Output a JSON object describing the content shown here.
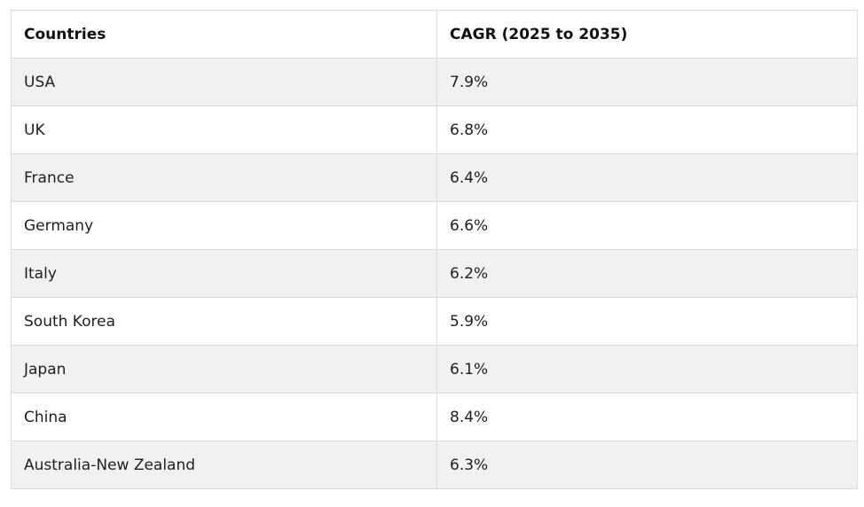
{
  "table": {
    "headers": [
      "Countries",
      "CAGR (2025 to 2035)"
    ],
    "rows": [
      {
        "country": "USA",
        "cagr": "7.9%"
      },
      {
        "country": "UK",
        "cagr": "6.8%"
      },
      {
        "country": "France",
        "cagr": "6.4%"
      },
      {
        "country": "Germany",
        "cagr": "6.6%"
      },
      {
        "country": "Italy",
        "cagr": "6.2%"
      },
      {
        "country": "South Korea",
        "cagr": "5.9%"
      },
      {
        "country": "Japan",
        "cagr": "6.1%"
      },
      {
        "country": "China",
        "cagr": "8.4%"
      },
      {
        "country": "Australia-New Zealand",
        "cagr": "6.3%"
      }
    ]
  }
}
